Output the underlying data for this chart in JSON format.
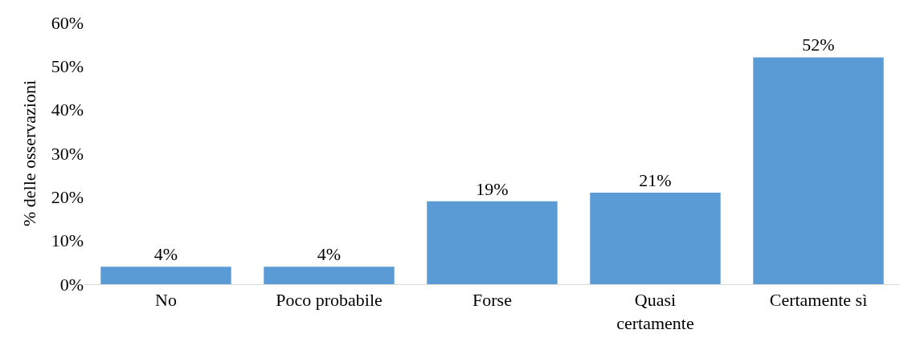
{
  "chart_data": {
    "type": "bar",
    "ylabel": "% delle osservazioni",
    "categories": [
      "No",
      "Poco probabile",
      "Forse",
      "Quasi\ncertamente",
      "Certamente sì"
    ],
    "values": [
      4,
      4,
      19,
      21,
      52
    ],
    "value_labels": [
      "4%",
      "4%",
      "19%",
      "21%",
      "52%"
    ],
    "color": "#5b9bd5",
    "ylim": [
      0,
      60
    ],
    "yticks": [
      {
        "value": 0,
        "label": "0%"
      },
      {
        "value": 10,
        "label": "10%"
      },
      {
        "value": 20,
        "label": "20%"
      },
      {
        "value": 30,
        "label": "30%"
      },
      {
        "value": 40,
        "label": "40%"
      },
      {
        "value": 50,
        "label": "50%"
      },
      {
        "value": 60,
        "label": "60%"
      }
    ],
    "grid": false
  }
}
